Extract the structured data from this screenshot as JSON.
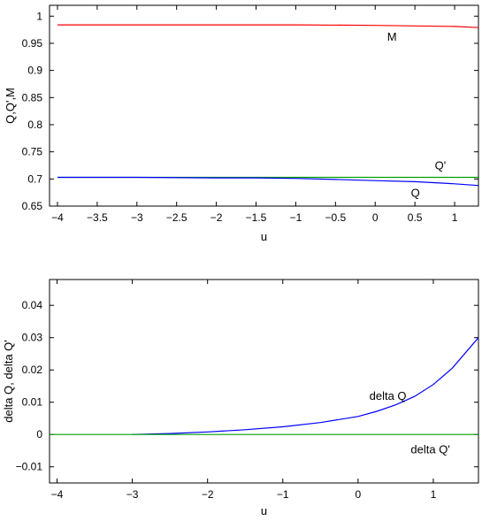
{
  "chart_data": [
    {
      "type": "line",
      "xlabel": "u",
      "ylabel": "Q,Q',M",
      "xlim": [
        -4.1,
        1.3
      ],
      "ylim": [
        0.65,
        1.02
      ],
      "x_ticks": [
        -4,
        -3.5,
        -3,
        -2.5,
        -2,
        -1.5,
        -1,
        -0.5,
        0,
        0.5,
        1
      ],
      "x_tick_labels": [
        "−4",
        "−3.5",
        "−3",
        "−2.5",
        "−2",
        "−1.5",
        "−1",
        "−0.5",
        "0",
        "0.5",
        "1"
      ],
      "y_ticks": [
        0.65,
        0.7,
        0.75,
        0.8,
        0.85,
        0.9,
        0.95,
        1
      ],
      "y_tick_labels": [
        "0.65",
        "0.7",
        "0.75",
        "0.8",
        "0.85",
        "0.9",
        "0.95",
        "1"
      ],
      "grid": false,
      "series": [
        {
          "name": "M",
          "color": "#ff0000",
          "x": [
            -4,
            -3,
            -2,
            -1,
            0,
            0.5,
            1,
            1.3
          ],
          "y": [
            0.984,
            0.984,
            0.984,
            0.984,
            0.983,
            0.982,
            0.981,
            0.979
          ]
        },
        {
          "name": "Q'",
          "color": "#00a000",
          "x": [
            -4,
            -3,
            -2,
            -1,
            0,
            1,
            1.3
          ],
          "y": [
            0.703,
            0.703,
            0.703,
            0.703,
            0.703,
            0.703,
            0.703
          ]
        },
        {
          "name": "Q",
          "color": "#0000ff",
          "x": [
            -4,
            -3,
            -2,
            -1.5,
            -1,
            -0.5,
            0,
            0.5,
            1,
            1.3
          ],
          "y": [
            0.703,
            0.703,
            0.702,
            0.702,
            0.701,
            0.699,
            0.697,
            0.695,
            0.691,
            0.688
          ]
        }
      ],
      "annotations": [
        {
          "text": "M",
          "x": 0.15,
          "y": 0.955
        },
        {
          "text": "Q'",
          "x": 0.75,
          "y": 0.718
        },
        {
          "text": "Q",
          "x": 0.45,
          "y": 0.667
        }
      ]
    },
    {
      "type": "line",
      "xlabel": "u",
      "ylabel": "delta Q, delta Q'",
      "xlim": [
        -4.1,
        1.6
      ],
      "ylim": [
        -0.015,
        0.048
      ],
      "x_ticks": [
        -4,
        -3,
        -2,
        -1,
        0,
        1
      ],
      "x_tick_labels": [
        "−4",
        "−3",
        "−2",
        "−1",
        "0",
        "1"
      ],
      "y_ticks": [
        -0.01,
        0,
        0.01,
        0.02,
        0.03,
        0.04
      ],
      "y_tick_labels": [
        "−0.01",
        "0",
        "0.01",
        "0.02",
        "0.03",
        "0.04"
      ],
      "grid": false,
      "series": [
        {
          "name": "delta Q",
          "color": "#0000ff",
          "x": [
            -3,
            -2.5,
            -2,
            -1.5,
            -1,
            -0.5,
            0,
            0.25,
            0.5,
            0.75,
            1,
            1.25,
            1.6
          ],
          "y": [
            0.0,
            0.0003,
            0.0008,
            0.0015,
            0.0024,
            0.0037,
            0.0056,
            0.0072,
            0.0092,
            0.0118,
            0.0155,
            0.0205,
            0.03
          ]
        },
        {
          "name": "delta Q'",
          "color": "#00a000",
          "x": [
            -4.1,
            -2,
            0,
            1.6
          ],
          "y": [
            0,
            0,
            0,
            0
          ]
        }
      ],
      "annotations": [
        {
          "text": "delta Q",
          "x": 0.15,
          "y": 0.0108
        },
        {
          "text": "delta Q'",
          "x": 0.7,
          "y": -0.0058
        }
      ]
    }
  ]
}
